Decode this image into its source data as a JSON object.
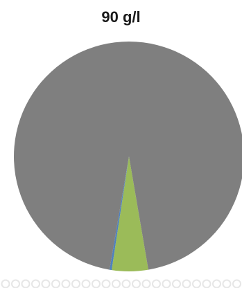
{
  "chart_data": {
    "type": "pie",
    "title": "90 g/l",
    "slices": [
      {
        "value": 94.6,
        "color": "#7f7f7f"
      },
      {
        "value": 5.1,
        "color": "#9bbb59"
      },
      {
        "value": 0.3,
        "color": "#4f81bd"
      }
    ],
    "legend_dot_color": "#e6e6e6"
  }
}
